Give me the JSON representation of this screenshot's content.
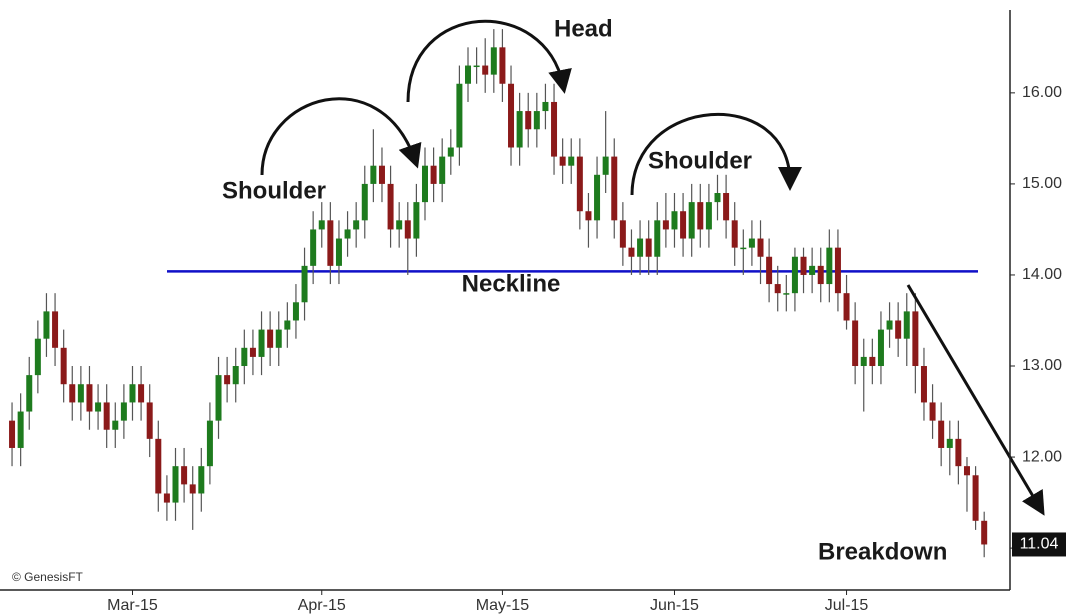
{
  "chart_data": {
    "type": "candlestick",
    "open": [
      12.4,
      12.1,
      12.5,
      12.9,
      13.3,
      13.6,
      13.2,
      12.8,
      12.6,
      12.8,
      12.5,
      12.6,
      12.3,
      12.4,
      12.6,
      12.8,
      12.6,
      12.2,
      11.6,
      11.5,
      11.9,
      11.7,
      11.6,
      11.9,
      12.4,
      12.9,
      12.8,
      13.0,
      13.2,
      13.1,
      13.4,
      13.2,
      13.4,
      13.5,
      13.7,
      14.1,
      14.5,
      14.6,
      14.1,
      14.4,
      14.5,
      14.6,
      15.0,
      15.2,
      15.0,
      14.5,
      14.6,
      14.4,
      14.8,
      15.2,
      15.0,
      15.3,
      15.4,
      16.1,
      16.3,
      16.3,
      16.2,
      16.5,
      16.1,
      15.4,
      15.8,
      15.6,
      15.8,
      15.9,
      15.3,
      15.2,
      15.3,
      14.7,
      14.6,
      15.1,
      15.3,
      14.6,
      14.3,
      14.2,
      14.4,
      14.2,
      14.6,
      14.5,
      14.7,
      14.4,
      14.8,
      14.5,
      14.8,
      14.9,
      14.6,
      14.3,
      14.3,
      14.4,
      14.2,
      13.9,
      13.8,
      13.8,
      14.2,
      14.0,
      14.1,
      13.9,
      14.3,
      13.8,
      13.5,
      13.0,
      13.1,
      13.0,
      13.4,
      13.5,
      13.3,
      13.6,
      13.0,
      12.6,
      12.4,
      12.1,
      12.2,
      11.9,
      11.8,
      11.3
    ],
    "high": [
      12.6,
      12.7,
      13.1,
      13.5,
      13.8,
      13.8,
      13.4,
      13.0,
      13.0,
      13.0,
      12.8,
      12.8,
      12.6,
      12.8,
      13.0,
      13.0,
      12.8,
      12.4,
      11.8,
      12.1,
      12.1,
      11.9,
      12.1,
      12.6,
      13.1,
      13.1,
      13.2,
      13.4,
      13.4,
      13.6,
      13.6,
      13.6,
      13.7,
      13.9,
      14.3,
      14.7,
      14.8,
      14.8,
      14.6,
      14.7,
      14.8,
      15.2,
      15.6,
      15.4,
      15.2,
      14.8,
      14.8,
      15.0,
      15.4,
      15.4,
      15.5,
      15.6,
      16.3,
      16.5,
      16.5,
      16.6,
      16.7,
      16.7,
      16.3,
      16.0,
      16.0,
      16.0,
      16.1,
      16.1,
      15.5,
      15.5,
      15.5,
      14.9,
      15.3,
      15.8,
      15.5,
      14.8,
      14.5,
      14.6,
      14.6,
      14.8,
      14.9,
      14.9,
      14.9,
      15.0,
      15.0,
      15.0,
      15.1,
      15.1,
      14.8,
      14.5,
      14.6,
      14.6,
      14.4,
      14.1,
      14.0,
      14.3,
      14.3,
      14.3,
      14.3,
      14.5,
      14.5,
      14.0,
      13.7,
      13.3,
      13.3,
      13.6,
      13.7,
      13.7,
      13.8,
      13.8,
      13.2,
      12.8,
      12.6,
      12.4,
      12.4,
      12.0,
      11.9,
      11.4
    ],
    "low": [
      11.9,
      11.9,
      12.3,
      12.7,
      13.1,
      13.0,
      12.6,
      12.4,
      12.4,
      12.3,
      12.3,
      12.1,
      12.1,
      12.2,
      12.4,
      12.4,
      12.0,
      11.4,
      11.3,
      11.3,
      11.5,
      11.2,
      11.4,
      11.7,
      12.2,
      12.6,
      12.6,
      12.8,
      12.9,
      12.9,
      13.0,
      13.0,
      13.2,
      13.3,
      13.5,
      13.9,
      14.3,
      13.9,
      13.9,
      14.2,
      14.3,
      14.4,
      14.8,
      14.8,
      14.3,
      14.3,
      14.0,
      14.2,
      14.6,
      14.8,
      14.8,
      15.1,
      15.2,
      15.9,
      16.1,
      16.0,
      16.0,
      15.9,
      15.2,
      15.2,
      15.4,
      15.4,
      15.6,
      15.1,
      15.0,
      15.0,
      14.5,
      14.3,
      14.4,
      14.9,
      14.4,
      14.1,
      14.0,
      14.0,
      14.0,
      14.0,
      14.3,
      14.3,
      14.2,
      14.2,
      14.3,
      14.3,
      14.6,
      14.4,
      14.1,
      14.0,
      14.1,
      13.9,
      13.7,
      13.6,
      13.6,
      13.6,
      13.8,
      13.8,
      13.7,
      13.7,
      13.6,
      13.4,
      12.8,
      12.5,
      12.8,
      12.8,
      13.2,
      13.1,
      13.0,
      12.7,
      12.4,
      12.2,
      11.9,
      11.8,
      11.7,
      11.4,
      11.2,
      10.9
    ],
    "close": [
      12.1,
      12.5,
      12.9,
      13.3,
      13.6,
      13.2,
      12.8,
      12.6,
      12.8,
      12.5,
      12.6,
      12.3,
      12.4,
      12.6,
      12.8,
      12.6,
      12.2,
      11.6,
      11.5,
      11.9,
      11.7,
      11.6,
      11.9,
      12.4,
      12.9,
      12.8,
      13.0,
      13.2,
      13.1,
      13.4,
      13.2,
      13.4,
      13.5,
      13.7,
      14.1,
      14.5,
      14.6,
      14.1,
      14.4,
      14.5,
      14.6,
      15.0,
      15.2,
      15.0,
      14.5,
      14.6,
      14.4,
      14.8,
      15.2,
      15.0,
      15.3,
      15.4,
      16.1,
      16.3,
      16.3,
      16.2,
      16.5,
      16.1,
      15.4,
      15.8,
      15.6,
      15.8,
      15.9,
      15.3,
      15.2,
      15.3,
      14.7,
      14.6,
      15.1,
      15.3,
      14.6,
      14.3,
      14.2,
      14.4,
      14.2,
      14.6,
      14.5,
      14.7,
      14.4,
      14.8,
      14.5,
      14.8,
      14.9,
      14.6,
      14.3,
      14.3,
      14.4,
      14.2,
      13.9,
      13.8,
      13.8,
      14.2,
      14.0,
      14.1,
      13.9,
      14.3,
      13.8,
      13.5,
      13.0,
      13.1,
      13.0,
      13.4,
      13.5,
      13.3,
      13.6,
      13.0,
      12.6,
      12.4,
      12.1,
      12.2,
      11.9,
      11.8,
      11.3,
      11.04
    ],
    "up_color": "#1e7b1e",
    "down_color": "#8b1a1a",
    "wick_color": "#555555",
    "xlim": [
      -1.4,
      116
    ],
    "xticks": [
      {
        "value": 14,
        "label": "Mar-15"
      },
      {
        "value": 36,
        "label": "Apr-15"
      },
      {
        "value": 57,
        "label": "May-15"
      },
      {
        "value": 77,
        "label": "Jun-15"
      },
      {
        "value": 97,
        "label": "Jul-15"
      }
    ],
    "ylim": [
      10.54,
      16.91
    ],
    "yticks": [
      {
        "value": 11,
        "label": "11.00"
      },
      {
        "value": 12,
        "label": "12.00"
      },
      {
        "value": 13,
        "label": "13.00"
      },
      {
        "value": 14,
        "label": "14.00"
      },
      {
        "value": 15,
        "label": "15.00"
      },
      {
        "value": 16,
        "label": "16.00"
      }
    ],
    "neckline": {
      "label": "Neckline",
      "value": 14.04,
      "color": "#1010c8"
    },
    "annotations": [
      "Shoulder",
      "Head",
      "Shoulder",
      "Breakdown"
    ],
    "watermark": "© GenesisFT"
  }
}
